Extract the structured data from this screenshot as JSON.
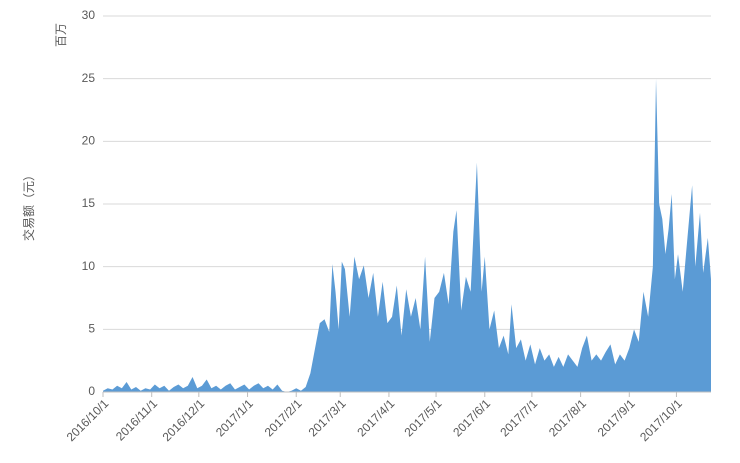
{
  "chart_data": {
    "type": "area",
    "y_label": "交易额（元）",
    "y_unit": "百万",
    "color": "#5b9bd5",
    "grid": true,
    "x": [
      "2016/10/1",
      "2016/10/4",
      "2016/10/7",
      "2016/10/10",
      "2016/10/13",
      "2016/10/16",
      "2016/10/19",
      "2016/10/22",
      "2016/10/25",
      "2016/10/28",
      "2016/10/31",
      "2016/11/3",
      "2016/11/6",
      "2016/11/9",
      "2016/11/12",
      "2016/11/15",
      "2016/11/18",
      "2016/11/21",
      "2016/11/24",
      "2016/11/27",
      "2016/11/30",
      "2016/12/3",
      "2016/12/6",
      "2016/12/9",
      "2016/12/12",
      "2016/12/15",
      "2016/12/18",
      "2016/12/21",
      "2016/12/24",
      "2016/12/27",
      "2016/12/30",
      "2017/1/2",
      "2017/1/5",
      "2017/1/8",
      "2017/1/11",
      "2017/1/14",
      "2017/1/17",
      "2017/1/20",
      "2017/1/23",
      "2017/1/26",
      "2017/1/29",
      "2017/2/1",
      "2017/2/4",
      "2017/2/7",
      "2017/2/10",
      "2017/2/13",
      "2017/2/16",
      "2017/2/19",
      "2017/2/22",
      "2017/2/24",
      "2017/2/26",
      "2017/2/28",
      "2017/3/2",
      "2017/3/4",
      "2017/3/7",
      "2017/3/10",
      "2017/3/13",
      "2017/3/16",
      "2017/3/19",
      "2017/3/22",
      "2017/3/25",
      "2017/3/28",
      "2017/3/31",
      "2017/4/3",
      "2017/4/6",
      "2017/4/9",
      "2017/4/12",
      "2017/4/15",
      "2017/4/18",
      "2017/4/21",
      "2017/4/24",
      "2017/4/27",
      "2017/4/30",
      "2017/5/3",
      "2017/5/6",
      "2017/5/9",
      "2017/5/12",
      "2017/5/14",
      "2017/5/17",
      "2017/5/20",
      "2017/5/23",
      "2017/5/27",
      "2017/5/30",
      "2017/6/1",
      "2017/6/4",
      "2017/6/7",
      "2017/6/10",
      "2017/6/13",
      "2017/6/16",
      "2017/6/18",
      "2017/6/21",
      "2017/6/24",
      "2017/6/27",
      "2017/6/30",
      "2017/7/3",
      "2017/7/6",
      "2017/7/9",
      "2017/7/12",
      "2017/7/15",
      "2017/7/18",
      "2017/7/21",
      "2017/7/24",
      "2017/7/27",
      "2017/7/30",
      "2017/8/2",
      "2017/8/5",
      "2017/8/8",
      "2017/8/11",
      "2017/8/14",
      "2017/8/17",
      "2017/8/20",
      "2017/8/23",
      "2017/8/26",
      "2017/8/29",
      "2017/9/1",
      "2017/9/4",
      "2017/9/7",
      "2017/9/10",
      "2017/9/13",
      "2017/9/16",
      "2017/9/18",
      "2017/9/20",
      "2017/9/22",
      "2017/9/24",
      "2017/9/26",
      "2017/9/28",
      "2017/9/30",
      "2017/10/2",
      "2017/10/5",
      "2017/10/8",
      "2017/10/11",
      "2017/10/13",
      "2017/10/16",
      "2017/10/18",
      "2017/10/21",
      "2017/10/23"
    ],
    "values": [
      0.1,
      0.3,
      0.2,
      0.5,
      0.3,
      0.8,
      0.2,
      0.4,
      0.1,
      0.3,
      0.2,
      0.6,
      0.3,
      0.5,
      0.1,
      0.4,
      0.6,
      0.3,
      0.5,
      1.2,
      0.3,
      0.5,
      1.0,
      0.3,
      0.5,
      0.2,
      0.5,
      0.7,
      0.2,
      0.4,
      0.6,
      0.2,
      0.5,
      0.7,
      0.3,
      0.5,
      0.2,
      0.6,
      0.1,
      0.0,
      0.1,
      0.3,
      0.1,
      0.4,
      1.5,
      3.5,
      5.5,
      5.8,
      4.8,
      10.2,
      8.0,
      5.0,
      10.4,
      9.8,
      6.0,
      10.8,
      9.0,
      10.1,
      7.5,
      9.5,
      6.0,
      8.8,
      5.5,
      6.0,
      8.5,
      4.5,
      8.2,
      6.0,
      7.5,
      5.0,
      10.8,
      4.0,
      7.5,
      8.0,
      9.5,
      7.0,
      12.8,
      14.5,
      6.5,
      9.2,
      8.0,
      18.3,
      8.0,
      10.8,
      5.0,
      6.5,
      3.5,
      4.5,
      3.0,
      7.0,
      3.5,
      4.2,
      2.5,
      3.8,
      2.2,
      3.5,
      2.5,
      3.0,
      2.0,
      2.8,
      2.0,
      3.0,
      2.5,
      2.0,
      3.5,
      4.5,
      2.5,
      3.0,
      2.5,
      3.2,
      3.8,
      2.2,
      3.0,
      2.5,
      3.5,
      5.0,
      4.0,
      8.0,
      6.0,
      10.0,
      25.0,
      15.0,
      13.8,
      11.0,
      13.0,
      15.8,
      9.0,
      11.0,
      8.0,
      12.3,
      16.5,
      10.0,
      14.3,
      9.5,
      12.3,
      9.0
    ],
    "xlim": [
      "2016/10/1",
      "2017/10/23"
    ],
    "xticks": [
      "2016/10/1",
      "2016/11/1",
      "2016/12/1",
      "2017/1/1",
      "2017/2/1",
      "2017/3/1",
      "2017/4/1",
      "2017/5/1",
      "2017/6/1",
      "2017/7/1",
      "2017/8/1",
      "2017/9/1",
      "2017/10/1"
    ],
    "ylim": [
      0,
      30
    ],
    "yticks": [
      0,
      5,
      10,
      15,
      20,
      25,
      30
    ]
  }
}
